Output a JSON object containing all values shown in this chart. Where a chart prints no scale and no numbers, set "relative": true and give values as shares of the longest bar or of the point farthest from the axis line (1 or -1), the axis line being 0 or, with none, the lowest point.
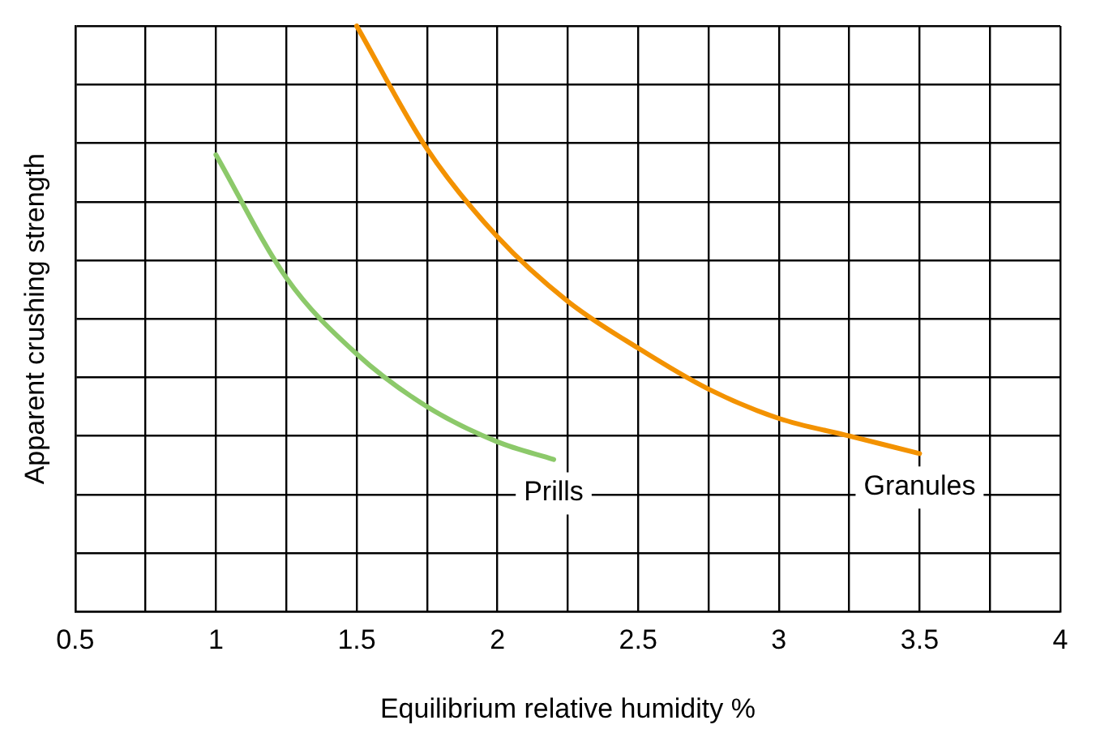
{
  "chart_data": {
    "type": "line",
    "relative": true,
    "xlabel": "Equilibrium relative humidity %",
    "ylabel": "Apparent crushing strength",
    "xlim": [
      0.5,
      4
    ],
    "xticks": [
      0.5,
      {
        "value": 0.75,
        "label": null
      },
      1,
      {
        "value": 1.25,
        "label": null
      },
      1.5,
      {
        "value": 1.75,
        "label": null
      },
      2,
      {
        "value": 2.25,
        "label": null
      },
      2.5,
      {
        "value": 2.75,
        "label": null
      },
      3,
      {
        "value": 3.25,
        "label": null
      },
      3.5,
      {
        "value": 3.75,
        "label": null
      },
      4
    ],
    "grid": true,
    "legend": false,
    "marker": "none",
    "line_style": "solid",
    "series": [
      {
        "name": "Prills",
        "color": "#8cc96a",
        "x": [
          1,
          1.25,
          1.5,
          1.75,
          2,
          2.2
        ],
        "values": [
          0.78,
          0.57,
          0.44,
          0.35,
          0.29,
          0.26
        ]
      },
      {
        "name": "Granules",
        "color": "#f39200",
        "x": [
          1.5,
          1.75,
          2,
          2.25,
          2.5,
          2.75,
          3,
          3.25,
          3.5
        ],
        "values": [
          1,
          0.79,
          0.64,
          0.53,
          0.45,
          0.38,
          0.33,
          0.3,
          0.27
        ]
      }
    ]
  }
}
